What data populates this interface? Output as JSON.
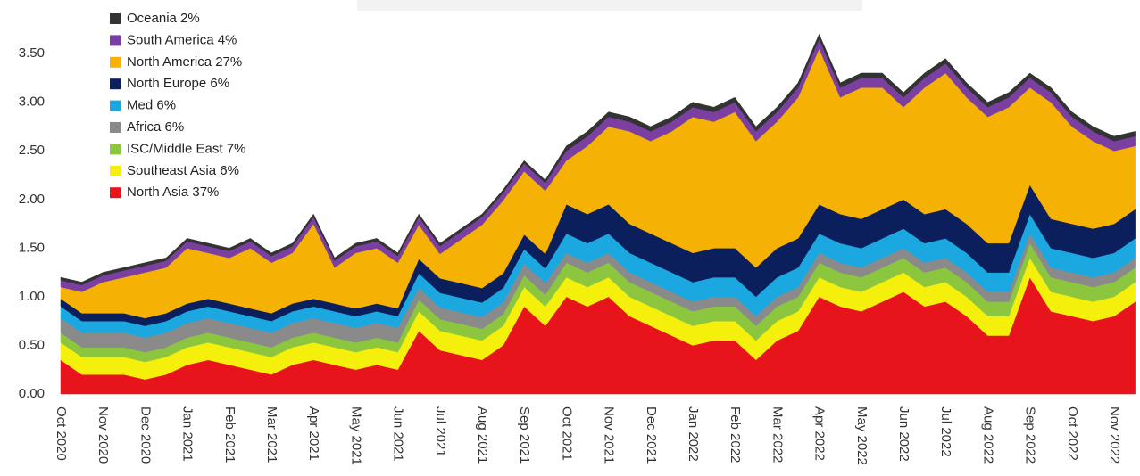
{
  "chart_data": {
    "type": "stacked-area",
    "categories": [
      "Oct 2020",
      null,
      "Nov 2020",
      null,
      "Dec 2020",
      null,
      "Jan 2021",
      null,
      "Feb 2021",
      null,
      "Mar 2021",
      null,
      "Apr 2021",
      null,
      "May 2021",
      null,
      "Jun 2021",
      null,
      "Jul 2021",
      null,
      "Aug 2021",
      null,
      "Sep 2021",
      null,
      "Oct 2021",
      null,
      "Nov 2021",
      null,
      "Dec 2021",
      null,
      "Jan 2022",
      null,
      "Feb 2022",
      null,
      "Mar 2022",
      null,
      "Apr 2022",
      null,
      "May 2022",
      null,
      "Jun 2022",
      null,
      "Jul 2022",
      null,
      "Aug 2022",
      null,
      "Sep 2022",
      null,
      "Oct 2022",
      null,
      "Nov 2022",
      null
    ],
    "ylim": [
      0,
      3.85
    ],
    "yticks": [
      {
        "value": 0,
        "label": "0.00"
      },
      {
        "value": 0.5,
        "label": "0.50"
      },
      {
        "value": 1,
        "label": "1.00"
      },
      {
        "value": 1.5,
        "label": "1.50"
      },
      {
        "value": 2,
        "label": "2.00"
      },
      {
        "value": 2.5,
        "label": "2.50"
      },
      {
        "value": 3,
        "label": "3.00"
      },
      {
        "value": 3.5,
        "label": "3.50"
      }
    ],
    "legend": "top-left",
    "series": [
      {
        "name": "North Asia 37%",
        "color": "#e8141b",
        "values": [
          0.35,
          0.2,
          0.2,
          0.2,
          0.15,
          0.2,
          0.3,
          0.35,
          0.3,
          0.25,
          0.2,
          0.3,
          0.35,
          0.3,
          0.25,
          0.3,
          0.25,
          0.65,
          0.45,
          0.4,
          0.35,
          0.5,
          0.9,
          0.7,
          1.0,
          0.9,
          1.0,
          0.8,
          0.7,
          0.6,
          0.5,
          0.55,
          0.55,
          0.35,
          0.55,
          0.65,
          1.0,
          0.9,
          0.85,
          0.95,
          1.05,
          0.9,
          0.95,
          0.8,
          0.6,
          0.6,
          1.2,
          0.85,
          0.8,
          0.75,
          0.8,
          0.95
        ]
      },
      {
        "name": "Southeast Asia 6%",
        "color": "#f5ef0c",
        "values": [
          0.18,
          0.18,
          0.18,
          0.18,
          0.18,
          0.18,
          0.18,
          0.18,
          0.18,
          0.18,
          0.18,
          0.18,
          0.18,
          0.18,
          0.18,
          0.18,
          0.18,
          0.2,
          0.2,
          0.2,
          0.2,
          0.2,
          0.2,
          0.2,
          0.2,
          0.2,
          0.2,
          0.2,
          0.2,
          0.2,
          0.2,
          0.2,
          0.2,
          0.2,
          0.2,
          0.2,
          0.2,
          0.2,
          0.2,
          0.2,
          0.2,
          0.2,
          0.2,
          0.2,
          0.2,
          0.2,
          0.2,
          0.2,
          0.2,
          0.2,
          0.2,
          0.2
        ]
      },
      {
        "name": "ISC/Middle East 7%",
        "color": "#8cc63f",
        "values": [
          0.1,
          0.1,
          0.1,
          0.1,
          0.1,
          0.1,
          0.1,
          0.1,
          0.1,
          0.1,
          0.1,
          0.1,
          0.1,
          0.1,
          0.1,
          0.1,
          0.1,
          0.12,
          0.12,
          0.12,
          0.12,
          0.12,
          0.12,
          0.12,
          0.15,
          0.15,
          0.15,
          0.15,
          0.15,
          0.15,
          0.15,
          0.15,
          0.15,
          0.15,
          0.15,
          0.15,
          0.15,
          0.15,
          0.15,
          0.15,
          0.15,
          0.15,
          0.15,
          0.15,
          0.15,
          0.15,
          0.15,
          0.15,
          0.15,
          0.15,
          0.15,
          0.15
        ]
      },
      {
        "name": "Africa 6%",
        "color": "#8a8a8a",
        "values": [
          0.15,
          0.15,
          0.15,
          0.15,
          0.15,
          0.15,
          0.15,
          0.15,
          0.15,
          0.15,
          0.15,
          0.15,
          0.15,
          0.15,
          0.15,
          0.15,
          0.15,
          0.12,
          0.12,
          0.12,
          0.12,
          0.12,
          0.12,
          0.12,
          0.1,
          0.1,
          0.1,
          0.1,
          0.1,
          0.1,
          0.1,
          0.1,
          0.1,
          0.1,
          0.1,
          0.1,
          0.1,
          0.1,
          0.1,
          0.1,
          0.1,
          0.1,
          0.1,
          0.1,
          0.1,
          0.1,
          0.1,
          0.1,
          0.1,
          0.1,
          0.1,
          0.1
        ]
      },
      {
        "name": "Med 6%",
        "color": "#1ba8e0",
        "values": [
          0.12,
          0.12,
          0.12,
          0.12,
          0.12,
          0.12,
          0.12,
          0.12,
          0.12,
          0.12,
          0.12,
          0.12,
          0.12,
          0.12,
          0.12,
          0.12,
          0.12,
          0.15,
          0.15,
          0.15,
          0.15,
          0.15,
          0.15,
          0.15,
          0.2,
          0.2,
          0.2,
          0.2,
          0.2,
          0.2,
          0.2,
          0.2,
          0.2,
          0.2,
          0.2,
          0.2,
          0.2,
          0.2,
          0.2,
          0.2,
          0.2,
          0.2,
          0.2,
          0.2,
          0.2,
          0.2,
          0.2,
          0.2,
          0.2,
          0.2,
          0.2,
          0.2
        ]
      },
      {
        "name": "North Europe 6%",
        "color": "#0b1f5c",
        "values": [
          0.08,
          0.08,
          0.08,
          0.08,
          0.08,
          0.08,
          0.08,
          0.08,
          0.08,
          0.08,
          0.08,
          0.08,
          0.08,
          0.08,
          0.08,
          0.08,
          0.08,
          0.15,
          0.15,
          0.15,
          0.15,
          0.15,
          0.15,
          0.15,
          0.3,
          0.3,
          0.3,
          0.3,
          0.3,
          0.3,
          0.3,
          0.3,
          0.3,
          0.3,
          0.3,
          0.3,
          0.3,
          0.3,
          0.3,
          0.3,
          0.3,
          0.3,
          0.3,
          0.3,
          0.3,
          0.3,
          0.3,
          0.3,
          0.3,
          0.3,
          0.3,
          0.3
        ]
      },
      {
        "name": "North America 27%",
        "color": "#f5b104",
        "values": [
          0.12,
          0.22,
          0.32,
          0.37,
          0.47,
          0.47,
          0.57,
          0.47,
          0.47,
          0.62,
          0.52,
          0.52,
          0.77,
          0.37,
          0.57,
          0.57,
          0.47,
          0.35,
          0.25,
          0.45,
          0.65,
          0.75,
          0.65,
          0.65,
          0.45,
          0.7,
          0.8,
          0.95,
          0.95,
          1.15,
          1.4,
          1.3,
          1.4,
          1.3,
          1.3,
          1.45,
          1.6,
          1.2,
          1.35,
          1.25,
          0.95,
          1.3,
          1.4,
          1.3,
          1.3,
          1.4,
          1.0,
          1.2,
          1.0,
          0.9,
          0.75,
          0.65
        ]
      },
      {
        "name": "South America 4%",
        "color": "#7a3fa0",
        "values": [
          0.07,
          0.07,
          0.07,
          0.07,
          0.07,
          0.07,
          0.07,
          0.07,
          0.07,
          0.07,
          0.07,
          0.07,
          0.07,
          0.07,
          0.07,
          0.07,
          0.07,
          0.08,
          0.08,
          0.08,
          0.08,
          0.08,
          0.08,
          0.08,
          0.1,
          0.1,
          0.1,
          0.1,
          0.1,
          0.1,
          0.1,
          0.1,
          0.1,
          0.1,
          0.1,
          0.1,
          0.1,
          0.1,
          0.1,
          0.1,
          0.1,
          0.1,
          0.1,
          0.1,
          0.1,
          0.1,
          0.1,
          0.1,
          0.1,
          0.1,
          0.1,
          0.1
        ]
      },
      {
        "name": "Oceania 2%",
        "color": "#333333",
        "values": [
          0.03,
          0.03,
          0.03,
          0.03,
          0.03,
          0.03,
          0.03,
          0.03,
          0.03,
          0.03,
          0.03,
          0.03,
          0.03,
          0.03,
          0.03,
          0.03,
          0.03,
          0.03,
          0.03,
          0.03,
          0.03,
          0.03,
          0.03,
          0.03,
          0.05,
          0.05,
          0.05,
          0.05,
          0.05,
          0.05,
          0.05,
          0.05,
          0.05,
          0.05,
          0.05,
          0.05,
          0.05,
          0.05,
          0.05,
          0.05,
          0.05,
          0.05,
          0.05,
          0.05,
          0.05,
          0.05,
          0.05,
          0.05,
          0.05,
          0.05,
          0.05,
          0.05
        ]
      }
    ]
  }
}
